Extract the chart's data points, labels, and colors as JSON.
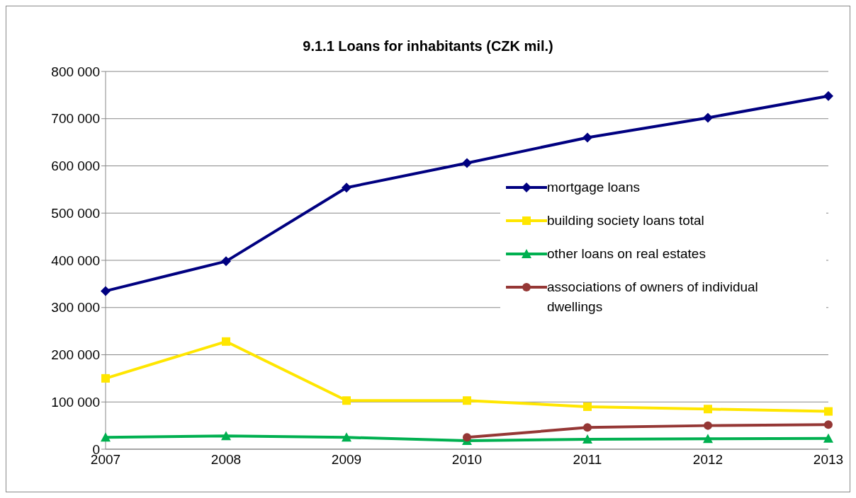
{
  "chart_data": {
    "type": "line",
    "title": "9.1.1 Loans for inhabitants (CZK mil.)",
    "categories": [
      "2007",
      "2008",
      "2009",
      "2010",
      "2011",
      "2012",
      "2013"
    ],
    "series": [
      {
        "name": "mortgage loans",
        "color": "#000080",
        "marker": "diamond",
        "values": [
          335000,
          398000,
          554000,
          606000,
          660000,
          702000,
          748000
        ]
      },
      {
        "name": "building society loans total",
        "color": "#ffe600",
        "marker": "square",
        "values": [
          150000,
          228000,
          103000,
          103000,
          90000,
          85000,
          80000
        ]
      },
      {
        "name": "other loans on real estates",
        "color": "#00b050",
        "marker": "triangle",
        "values": [
          25000,
          28000,
          25000,
          18000,
          21000,
          22000,
          23000
        ]
      },
      {
        "name": "associations of owners of individual dwellings",
        "color": "#953735",
        "marker": "circle",
        "values": [
          null,
          null,
          null,
          25000,
          46000,
          50000,
          52000
        ]
      }
    ],
    "ylim": [
      0,
      800000
    ],
    "yticks": [
      0,
      {
        "value": 100000,
        "label": "100 000"
      },
      {
        "value": 200000,
        "label": "200 000"
      },
      {
        "value": 300000,
        "label": "300 000"
      },
      {
        "value": 400000,
        "label": "400 000"
      },
      {
        "value": 500000,
        "label": "500 000"
      },
      {
        "value": 600000,
        "label": "600 000"
      },
      {
        "value": 700000,
        "label": "700 000"
      },
      {
        "value": 800000,
        "label": "800 000"
      }
    ],
    "grid": "y",
    "legend": "right",
    "line_style": "solid"
  }
}
